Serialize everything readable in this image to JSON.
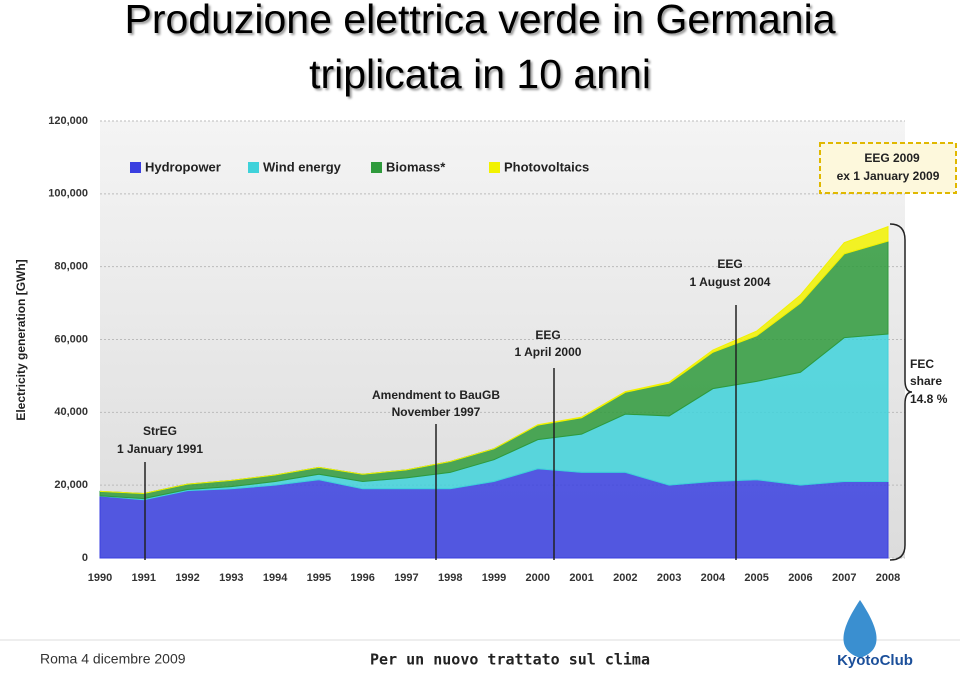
{
  "header": {
    "title_lines": [
      "Produzione elettrica verde in Germania",
      "triplicata in 10 anni"
    ]
  },
  "chart_data": {
    "type": "stacked-area",
    "y_label": "Electricity generation [GWh]",
    "categories": [
      "1990",
      "1991",
      "1992",
      "1993",
      "1994",
      "1995",
      "1996",
      "1997",
      "1998",
      "1999",
      "2000",
      "2001",
      "2002",
      "2003",
      "2004",
      "2005",
      "2006",
      "2007",
      "2008"
    ],
    "series": [
      {
        "name": "Hydropower",
        "color": "#3a3fe0",
        "values": [
          17000,
          16000,
          18500,
          19000,
          20000,
          21500,
          19000,
          19000,
          19000,
          21000,
          24500,
          23500,
          23500,
          20000,
          21000,
          21500,
          20000,
          21000,
          21000
        ]
      },
      {
        "name": "Wind energy",
        "color": "#3fd2da",
        "values": [
          100,
          300,
          300,
          600,
          1000,
          1500,
          2000,
          3000,
          4500,
          6000,
          8000,
          10500,
          16000,
          19000,
          25500,
          27000,
          31000,
          39500,
          40500
        ]
      },
      {
        "name": "Biomass*",
        "color": "#2f9a3c",
        "values": [
          1200,
          1400,
          1500,
          1700,
          1800,
          1900,
          2000,
          2200,
          3000,
          3000,
          4000,
          4500,
          6000,
          9000,
          10000,
          12500,
          19000,
          23000,
          25500
        ]
      },
      {
        "name": "Photovoltaics",
        "color": "#f2f200",
        "values": [
          0,
          0,
          0,
          0,
          0,
          0,
          0,
          0,
          0,
          0,
          100,
          200,
          200,
          300,
          600,
          1300,
          2200,
          3100,
          4000
        ]
      }
    ],
    "ylim": [
      0,
      120000
    ],
    "yticks": [
      0,
      {
        "value": 20000,
        "label": "20,000"
      },
      {
        "value": 40000,
        "label": "40,000"
      },
      {
        "value": 60000,
        "label": "60,000"
      },
      {
        "value": 80000,
        "label": "80,000"
      },
      {
        "value": 100000,
        "label": "100,000"
      },
      {
        "value": 120000,
        "label": "120,000"
      }
    ],
    "annotations": {
      "streg": [
        "StrEG",
        "1 January 1991"
      ],
      "baugb": [
        "Amendment to BauGB",
        "November 1997"
      ],
      "eeg2000": [
        "EEG",
        "1 April 2000"
      ],
      "eeg2004": [
        "EEG",
        "1 August 2004"
      ],
      "eeg2009": [
        "EEG 2009",
        "ex 1 January 2009"
      ],
      "fec": [
        "FEC",
        "share",
        "14.8 %"
      ]
    }
  },
  "footer": {
    "left": "Roma 4 dicembre 2009",
    "center": "Per un nuovo trattato sul clima",
    "logo": "KyotoClub"
  }
}
